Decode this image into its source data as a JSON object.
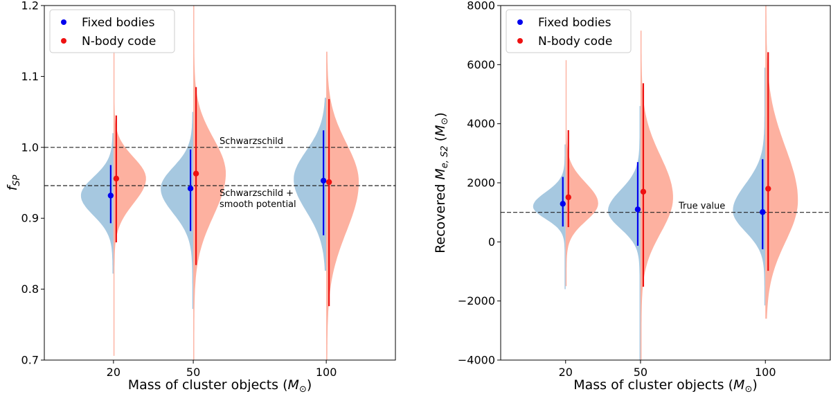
{
  "colors": {
    "fixed_violin": "#a6c8e0",
    "fixed_point": "#0000ee",
    "nbody_violin": "#fdb1a0",
    "nbody_point": "#ee1111"
  },
  "chart_data": [
    {
      "type": "violin",
      "xlabel": "Mass of cluster objects ($M_\\odot$)",
      "xlabel_text": "Mass of cluster objects (",
      "xlabel_symbol": "M",
      "xlabel_sub": "⊙",
      "xlabel_close": ")",
      "ylabel": "f_SP",
      "ylabel_main": "f",
      "ylabel_sub": "SP",
      "categories": [
        "20",
        "50",
        "100"
      ],
      "x_positions": [
        20,
        50,
        100
      ],
      "xlim": [
        -6,
        126
      ],
      "ylim": [
        0.7,
        1.2
      ],
      "yticks": [
        "0.7",
        "0.8",
        "0.9",
        "1.0",
        "1.1",
        "1.2"
      ],
      "yticks_values": [
        0.7,
        0.8,
        0.9,
        1.0,
        1.1,
        1.2
      ],
      "legend": [
        "Fixed bodies",
        "N-body code"
      ],
      "legend_position": "top-left",
      "reference_lines": [
        {
          "y": 1.0,
          "label": "Schwarzschild"
        },
        {
          "y": 0.946,
          "label": "Schwarzschild + smooth potential",
          "label_line1": "Schwarzschild +",
          "label_line2": "smooth potential"
        }
      ],
      "series": [
        {
          "name": "Fixed bodies",
          "side": "left",
          "points": [
            {
              "x": 20,
              "median": 0.932,
              "low": 0.893,
              "high": 0.975
            },
            {
              "x": 50,
              "median": 0.942,
              "low": 0.882,
              "high": 0.997
            },
            {
              "x": 100,
              "median": 0.953,
              "low": 0.876,
              "high": 1.024
            }
          ],
          "violins": [
            {
              "x": 20,
              "ymin": 0.822,
              "ymax": 1.02,
              "peak": 0.932,
              "sigma_lo": 0.028,
              "sigma_hi": 0.026
            },
            {
              "x": 50,
              "ymin": 0.772,
              "ymax": 1.05,
              "peak": 0.942,
              "sigma_lo": 0.035,
              "sigma_hi": 0.03
            },
            {
              "x": 100,
              "ymin": 0.826,
              "ymax": 1.07,
              "peak": 0.955,
              "sigma_lo": 0.045,
              "sigma_hi": 0.04
            }
          ]
        },
        {
          "name": "N-body code",
          "side": "right",
          "points": [
            {
              "x": 20,
              "median": 0.956,
              "low": 0.866,
              "high": 1.045
            },
            {
              "x": 50,
              "median": 0.963,
              "low": 0.834,
              "high": 1.085
            },
            {
              "x": 100,
              "median": 0.951,
              "low": 0.776,
              "high": 1.068
            }
          ],
          "violins": [
            {
              "x": 20,
              "ymin": 0.706,
              "ymax": 1.135,
              "peak": 0.956,
              "sigma_lo": 0.035,
              "sigma_hi": 0.03
            },
            {
              "x": 50,
              "ymin": 0.7,
              "ymax": 1.2,
              "peak": 0.963,
              "sigma_lo": 0.06,
              "sigma_hi": 0.05
            },
            {
              "x": 100,
              "ymin": 0.7,
              "ymax": 1.135,
              "peak": 0.951,
              "sigma_lo": 0.07,
              "sigma_hi": 0.055
            }
          ]
        }
      ]
    },
    {
      "type": "violin",
      "xlabel": "Mass of cluster objects ($M_\\odot$)",
      "xlabel_text": "Mass of cluster objects (",
      "xlabel_symbol": "M",
      "xlabel_sub": "⊙",
      "xlabel_close": ")",
      "ylabel": "Recovered M_e,S2 (M_sun)",
      "ylabel_text": "Recovered ",
      "ylabel_symbol": "M",
      "ylabel_sub": "e, S2",
      "ylabel_open": " (",
      "ylabel_unit": "M",
      "ylabel_unit_sub": "⊙",
      "ylabel_close": ")",
      "categories": [
        "20",
        "50",
        "100"
      ],
      "x_positions": [
        20,
        50,
        100
      ],
      "xlim": [
        -6,
        126
      ],
      "ylim": [
        -4000,
        8000
      ],
      "yticks": [
        "−4000",
        "−2000",
        "0",
        "2000",
        "4000",
        "6000",
        "8000"
      ],
      "yticks_values": [
        -4000,
        -2000,
        0,
        2000,
        4000,
        6000,
        8000
      ],
      "legend": [
        "Fixed bodies",
        "N-body code"
      ],
      "legend_position": "top-left",
      "reference_lines": [
        {
          "y": 1000,
          "label": "True value"
        }
      ],
      "series": [
        {
          "name": "Fixed bodies",
          "side": "left",
          "points": [
            {
              "x": 20,
              "median": 1290,
              "low": 520,
              "high": 2200
            },
            {
              "x": 50,
              "median": 1100,
              "low": -130,
              "high": 2700
            },
            {
              "x": 100,
              "median": 1010,
              "low": -250,
              "high": 2800
            }
          ],
          "violins": [
            {
              "x": 20,
              "ymin": -1600,
              "ymax": 3300,
              "peak": 1200,
              "sigma_lo": 420,
              "sigma_hi": 480
            },
            {
              "x": 50,
              "ymin": -4000,
              "ymax": 4600,
              "peak": 1050,
              "sigma_lo": 600,
              "sigma_hi": 700
            },
            {
              "x": 100,
              "ymin": -2150,
              "ymax": 5900,
              "peak": 1050,
              "sigma_lo": 700,
              "sigma_hi": 900
            }
          ]
        },
        {
          "name": "N-body code",
          "side": "right",
          "points": [
            {
              "x": 20,
              "median": 1510,
              "low": 500,
              "high": 3780
            },
            {
              "x": 50,
              "median": 1700,
              "low": -1520,
              "high": 5370
            },
            {
              "x": 100,
              "median": 1800,
              "low": -980,
              "high": 6420
            }
          ],
          "violins": [
            {
              "x": 20,
              "ymin": -1500,
              "ymax": 6150,
              "peak": 1300,
              "sigma_lo": 600,
              "sigma_hi": 700
            },
            {
              "x": 50,
              "ymin": -4000,
              "ymax": 7150,
              "peak": 1500,
              "sigma_lo": 1200,
              "sigma_hi": 1400
            },
            {
              "x": 100,
              "ymin": -2600,
              "ymax": 8000,
              "peak": 1400,
              "sigma_lo": 1400,
              "sigma_hi": 1800
            }
          ]
        }
      ]
    }
  ]
}
